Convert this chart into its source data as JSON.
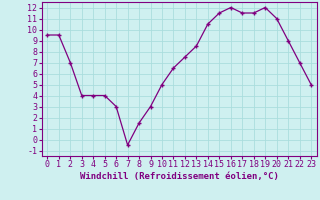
{
  "hours": [
    0,
    1,
    2,
    3,
    4,
    5,
    6,
    7,
    8,
    9,
    10,
    11,
    12,
    13,
    14,
    15,
    16,
    17,
    18,
    19,
    20,
    21,
    22,
    23
  ],
  "values": [
    9.5,
    9.5,
    7.0,
    4.0,
    4.0,
    4.0,
    3.0,
    -0.5,
    1.5,
    3.0,
    5.0,
    6.5,
    7.5,
    8.5,
    10.5,
    11.5,
    12.0,
    11.5,
    11.5,
    12.0,
    11.0,
    9.0,
    7.0,
    5.0
  ],
  "line_color": "#800080",
  "marker": "+",
  "marker_size": 3,
  "background_color": "#cff0f0",
  "grid_color": "#aadddd",
  "xlabel": "Windchill (Refroidissement éolien,°C)",
  "xlim": [
    -0.5,
    23.5
  ],
  "ylim": [
    -1.5,
    12.5
  ],
  "yticks": [
    -1,
    0,
    1,
    2,
    3,
    4,
    5,
    6,
    7,
    8,
    9,
    10,
    11,
    12
  ],
  "xticks": [
    0,
    1,
    2,
    3,
    4,
    5,
    6,
    7,
    8,
    9,
    10,
    11,
    12,
    13,
    14,
    15,
    16,
    17,
    18,
    19,
    20,
    21,
    22,
    23
  ],
  "tick_color": "#800080",
  "axis_color": "#800080",
  "label_fontsize": 6.5,
  "tick_fontsize": 6
}
